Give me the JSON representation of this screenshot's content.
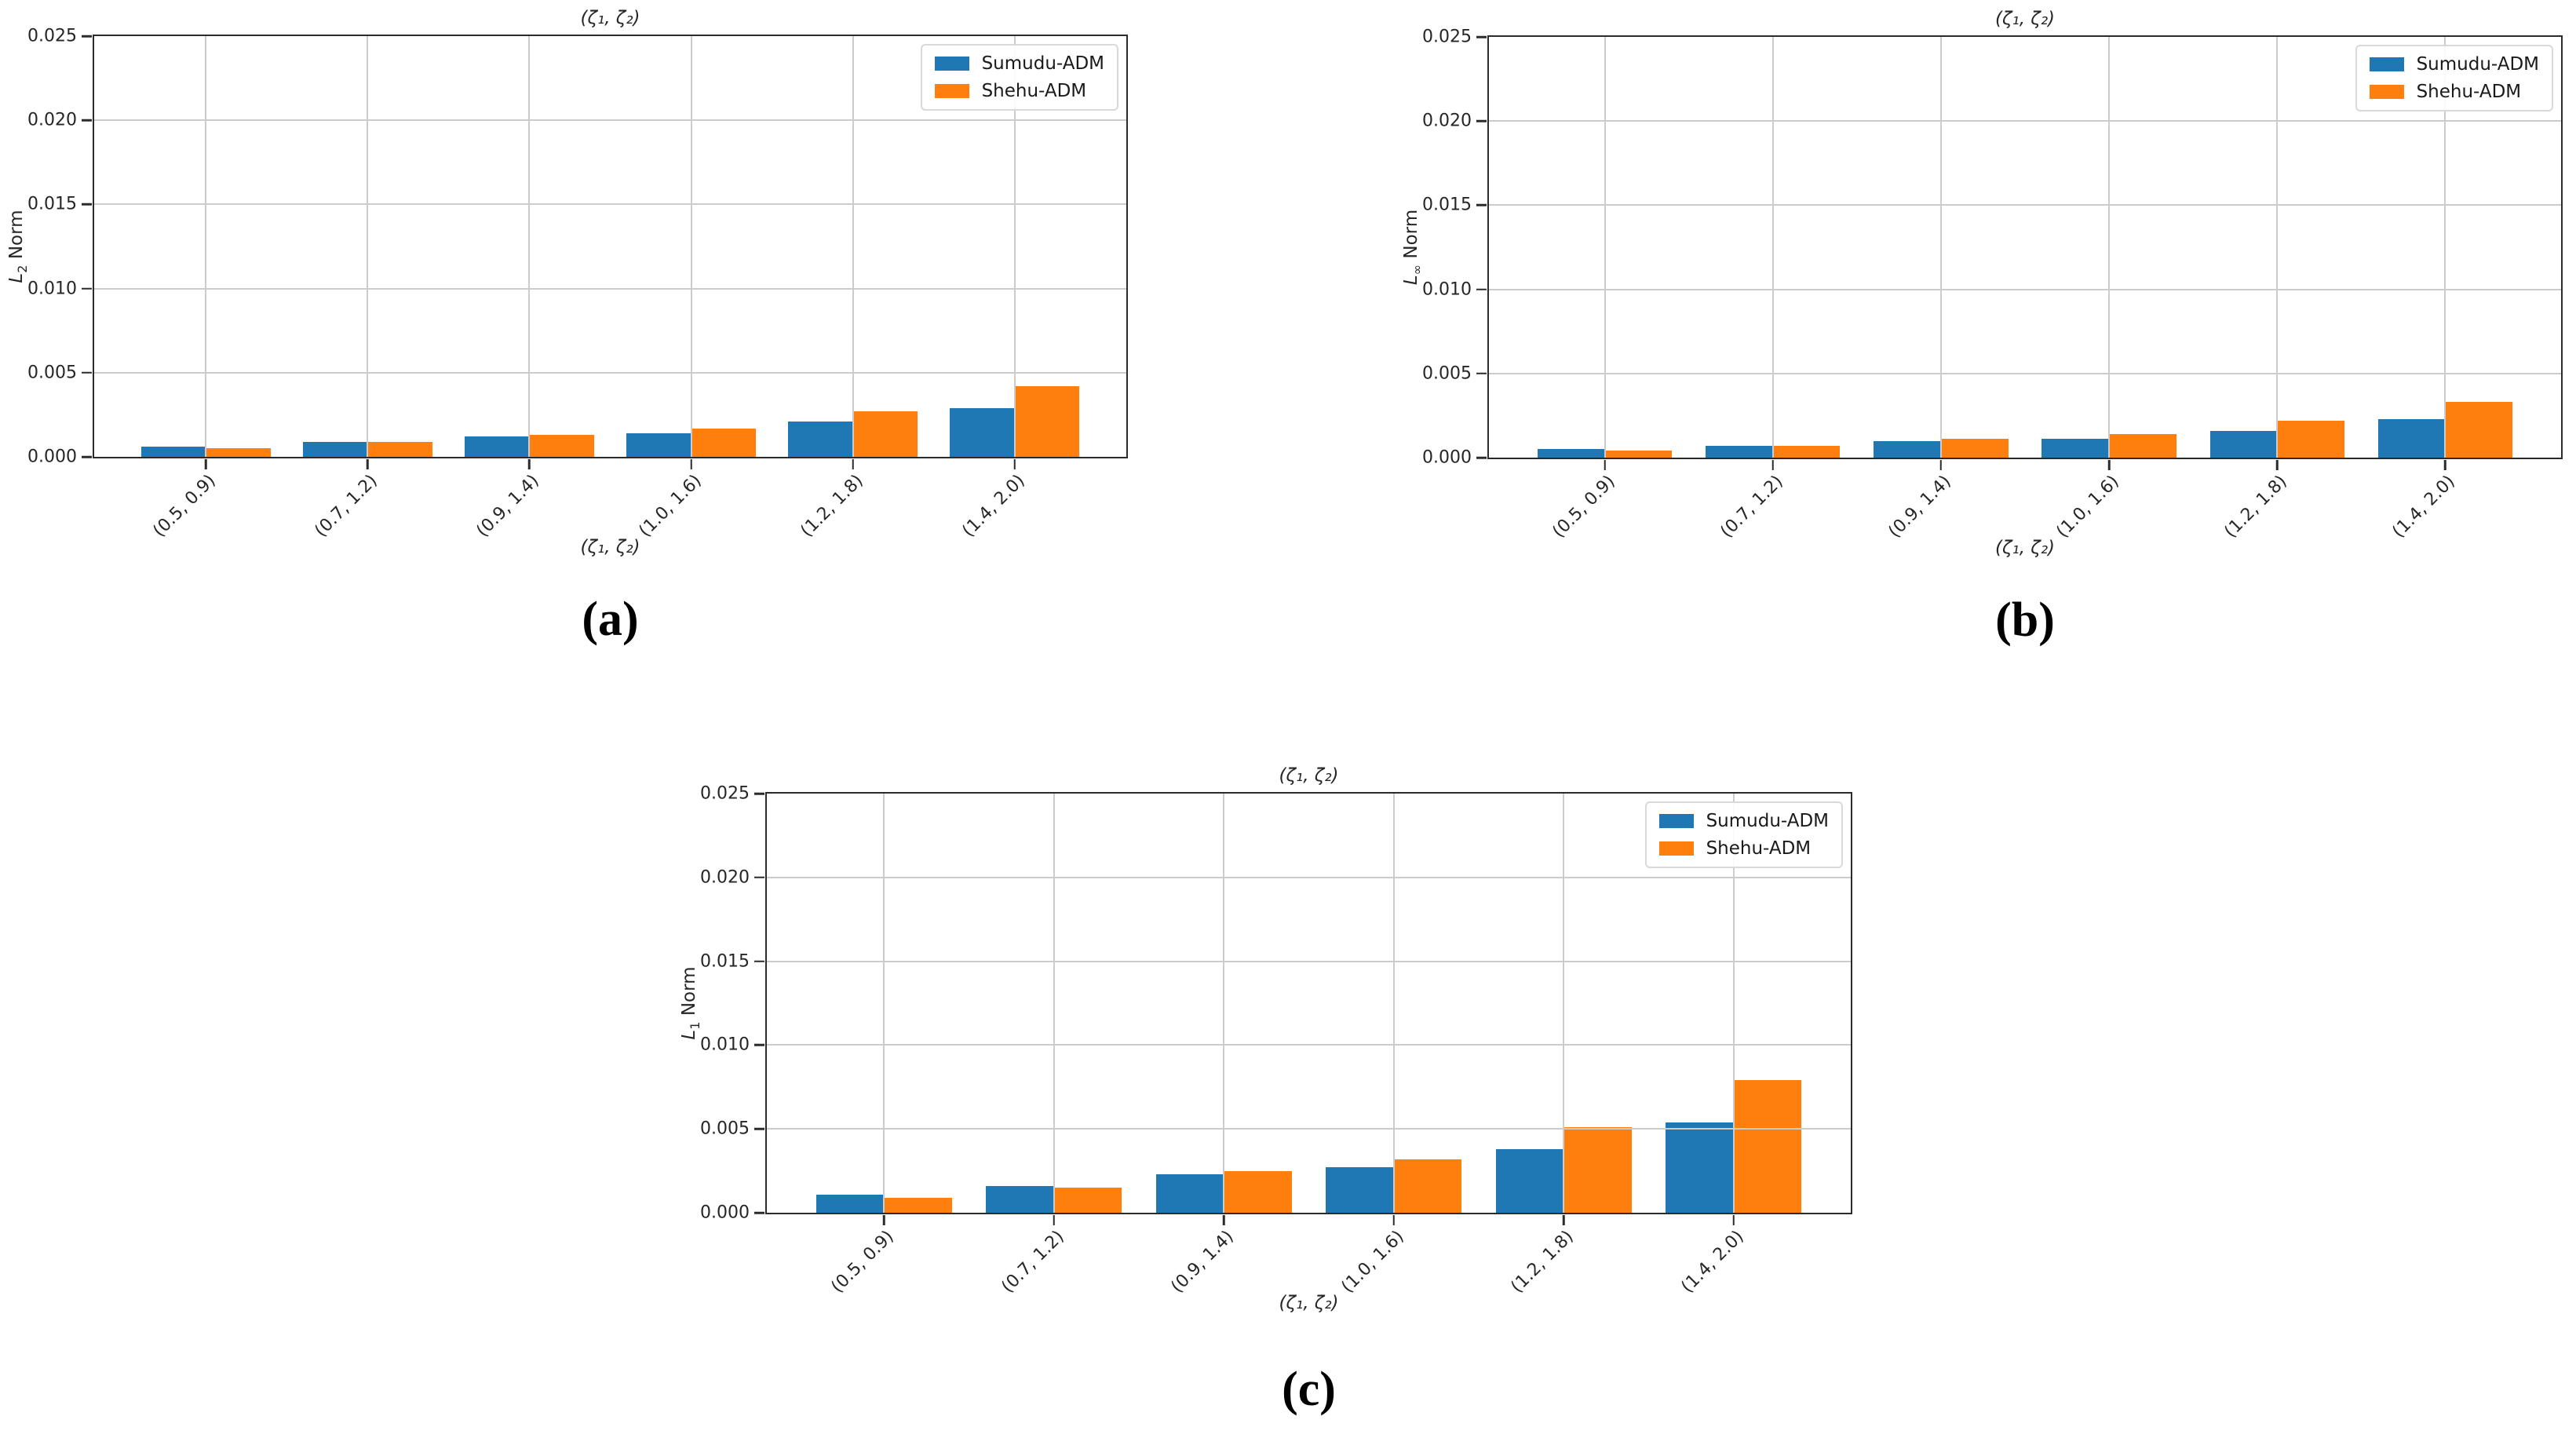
{
  "colors": {
    "sumudu": "#1f77b4",
    "shehu": "#ff7f0e"
  },
  "chart_data": [
    {
      "type": "bar",
      "caption": "(a)",
      "title": "(ζ₁, ζ₂)",
      "xlabel": "(ζ₁, ζ₂)",
      "ylabel": {
        "base": "L",
        "sub": "2",
        "rest": " Norm"
      },
      "ylim": [
        0,
        0.025
      ],
      "yticks": [
        "0.000",
        "0.005",
        "0.010",
        "0.015",
        "0.020",
        "0.025"
      ],
      "categories": [
        "(0.5, 0.9)",
        "(0.7, 1.2)",
        "(0.9, 1.4)",
        "(1.0, 1.6)",
        "(1.2, 1.8)",
        "(1.4, 2.0)"
      ],
      "series": [
        {
          "name": "Sumudu-ADM",
          "color_key": "sumudu",
          "values": [
            0.0006,
            0.0009,
            0.0012,
            0.0014,
            0.0021,
            0.0029
          ]
        },
        {
          "name": "Shehu-ADM",
          "color_key": "shehu",
          "values": [
            0.0005,
            0.0009,
            0.0013,
            0.0017,
            0.0027,
            0.0042
          ]
        }
      ],
      "grid": true,
      "legend_position": "top-right"
    },
    {
      "type": "bar",
      "caption": "(b)",
      "title": "(ζ₁, ζ₂)",
      "xlabel": "(ζ₁, ζ₂)",
      "ylabel": {
        "base": "L",
        "sub": "∞",
        "rest": " Norm"
      },
      "ylim": [
        0,
        0.025
      ],
      "yticks": [
        "0.000",
        "0.005",
        "0.010",
        "0.015",
        "0.020",
        "0.025"
      ],
      "categories": [
        "(0.5, 0.9)",
        "(0.7, 1.2)",
        "(0.9, 1.4)",
        "(1.0, 1.6)",
        "(1.2, 1.8)",
        "(1.4, 2.0)"
      ],
      "series": [
        {
          "name": "Sumudu-ADM",
          "color_key": "sumudu",
          "values": [
            0.0005,
            0.0007,
            0.001,
            0.0011,
            0.0016,
            0.0023
          ]
        },
        {
          "name": "Shehu-ADM",
          "color_key": "shehu",
          "values": [
            0.0004,
            0.0007,
            0.0011,
            0.0014,
            0.0022,
            0.0033
          ]
        }
      ],
      "grid": true,
      "legend_position": "top-right"
    },
    {
      "type": "bar",
      "caption": "(c)",
      "title": "(ζ₁, ζ₂)",
      "xlabel": "(ζ₁, ζ₂)",
      "ylabel": {
        "base": "L",
        "sub": "1",
        "rest": " Norm"
      },
      "ylim": [
        0,
        0.025
      ],
      "yticks": [
        "0.000",
        "0.005",
        "0.010",
        "0.015",
        "0.020",
        "0.025"
      ],
      "categories": [
        "(0.5, 0.9)",
        "(0.7, 1.2)",
        "(0.9, 1.4)",
        "(1.0, 1.6)",
        "(1.2, 1.8)",
        "(1.4, 2.0)"
      ],
      "series": [
        {
          "name": "Sumudu-ADM",
          "color_key": "sumudu",
          "values": [
            0.0011,
            0.0016,
            0.0023,
            0.0027,
            0.0038,
            0.0054
          ]
        },
        {
          "name": "Shehu-ADM",
          "color_key": "shehu",
          "values": [
            0.0009,
            0.0015,
            0.0025,
            0.0032,
            0.0051,
            0.0079
          ]
        }
      ],
      "grid": true,
      "legend_position": "top-right"
    }
  ]
}
